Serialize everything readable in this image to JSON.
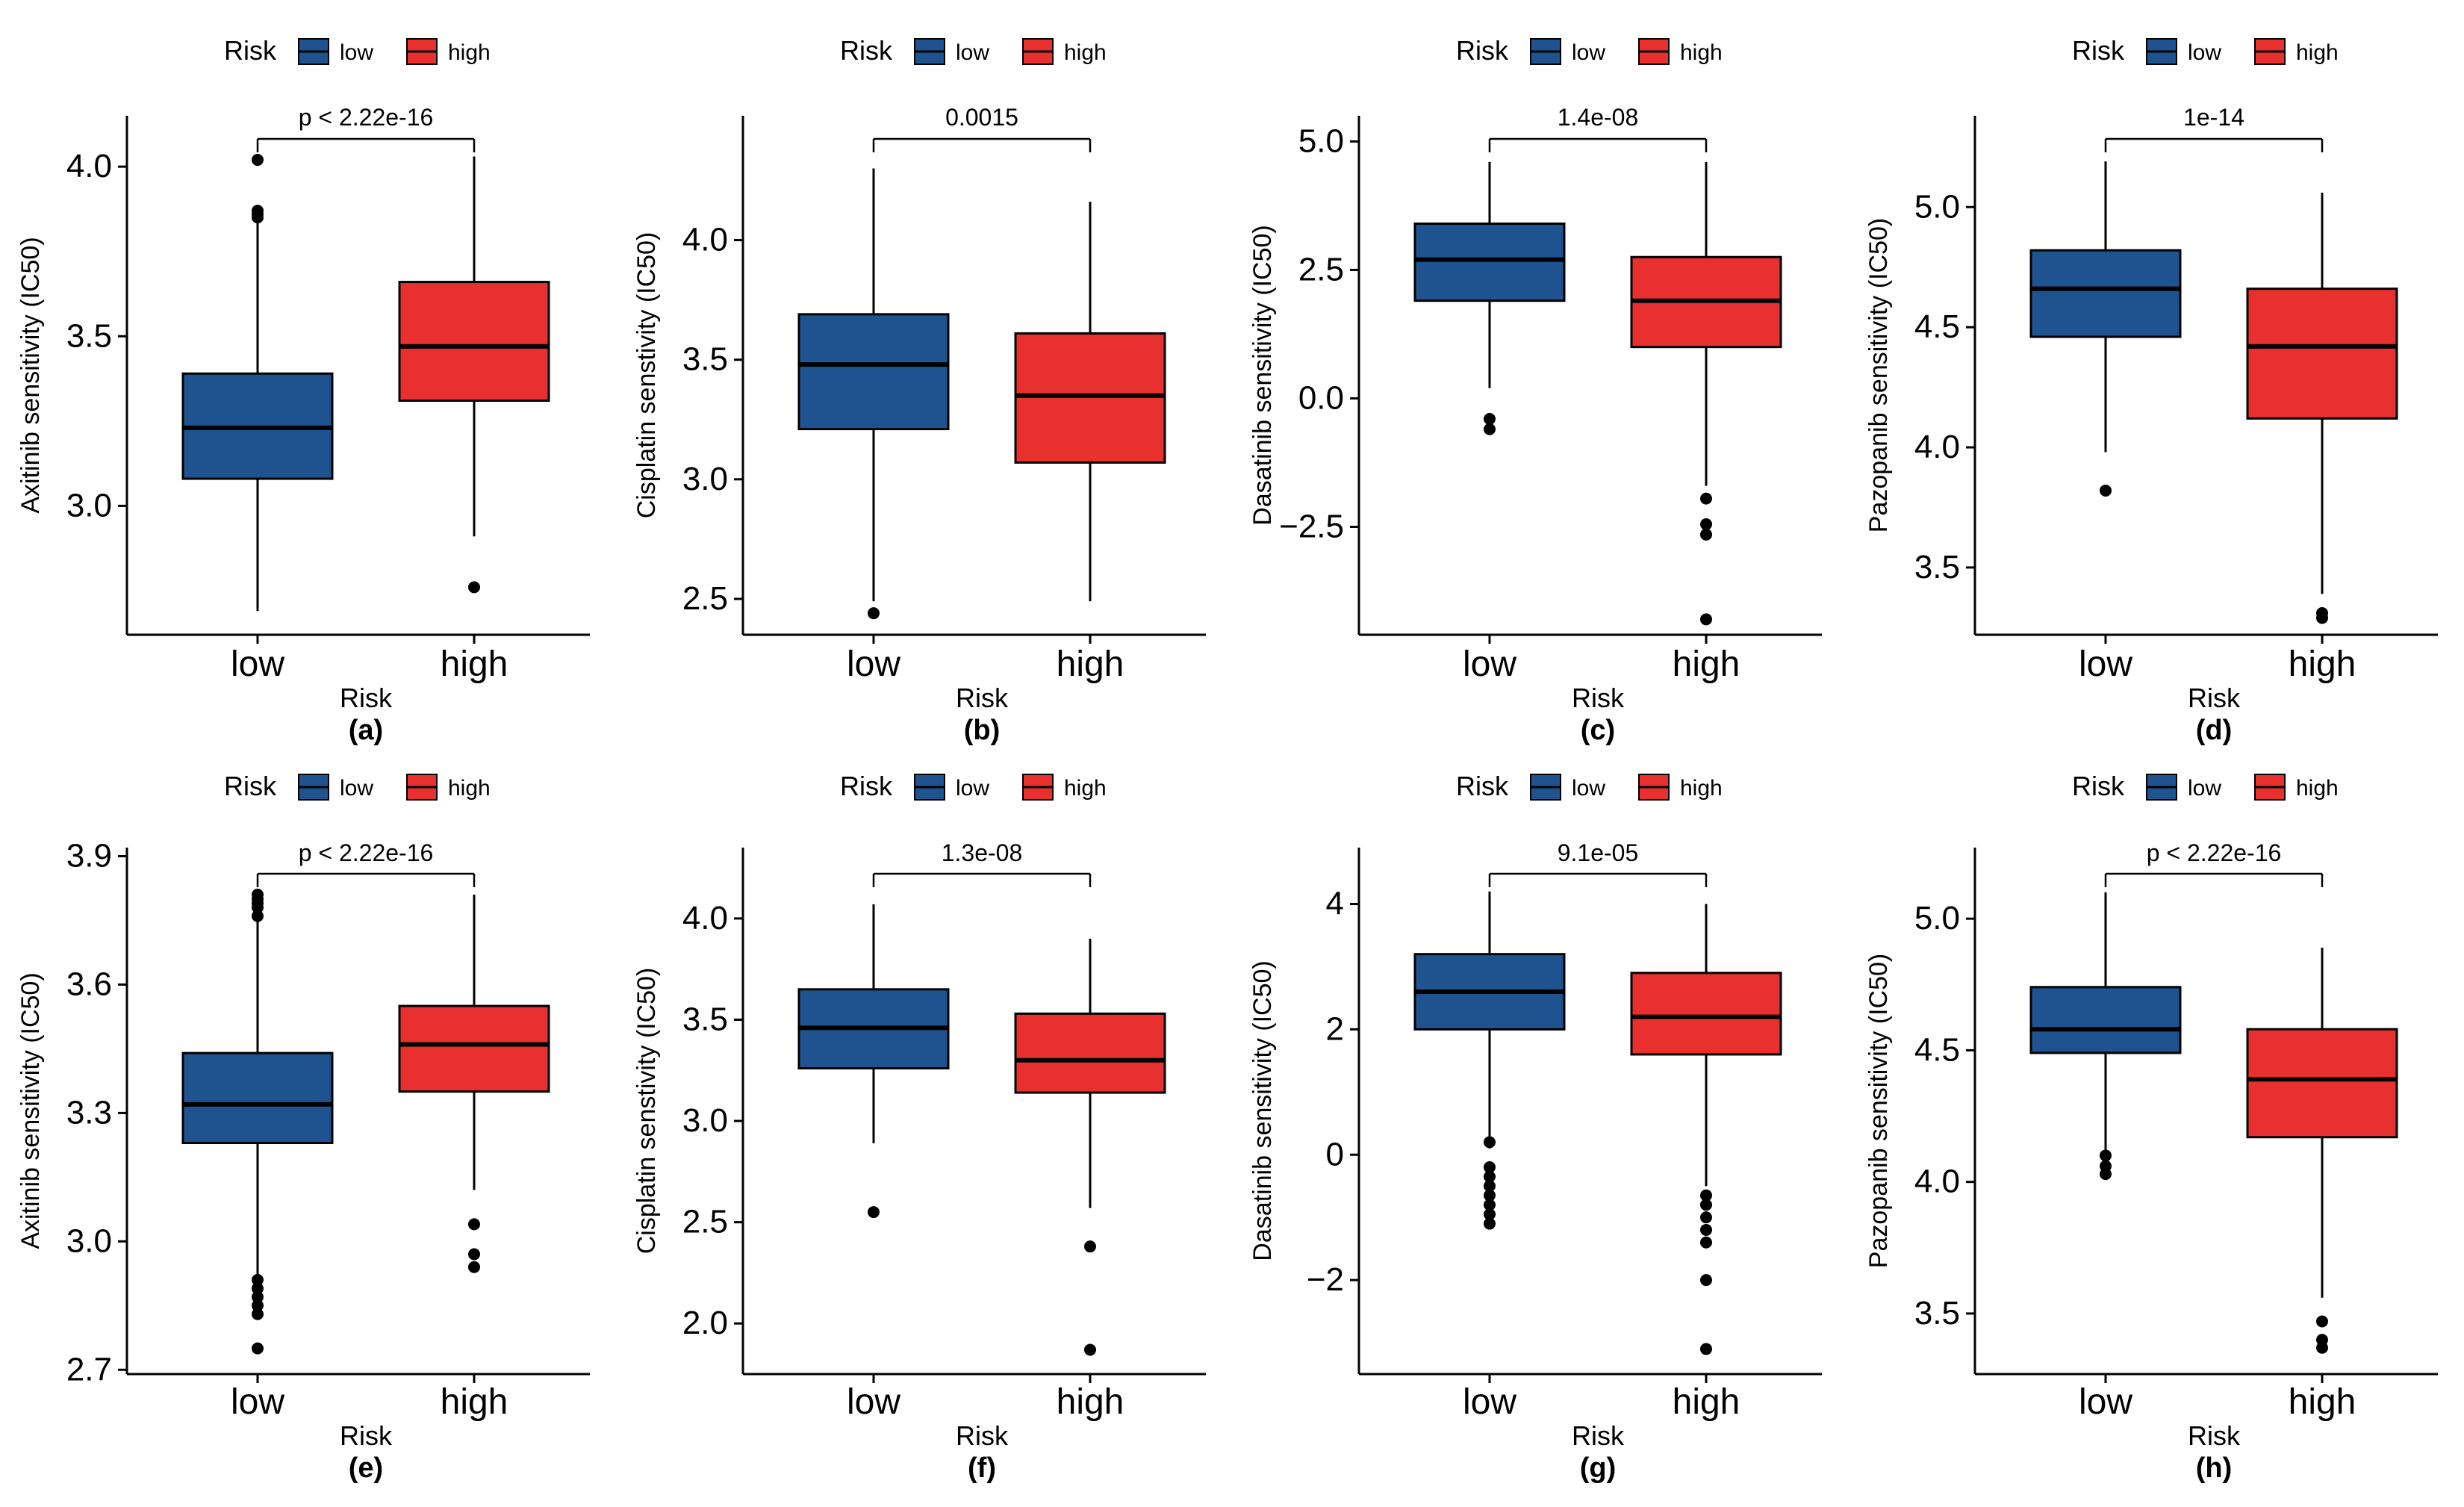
{
  "colors": {
    "low": "#1F5390",
    "high": "#E8312F",
    "axis": "#000000",
    "bracket": "#000000"
  },
  "legend": {
    "title": "Risk",
    "labels": [
      "low",
      "high"
    ]
  },
  "chart_data": [
    {
      "type": "boxplot",
      "panel": "(a)",
      "xlabel": "Risk",
      "ylabel": "Axitinib sensitivity (IC50)",
      "ylim": [
        2.62,
        4.15
      ],
      "yticks": [
        3.0,
        3.5,
        4.0
      ],
      "ytick_labels": [
        "3.0",
        "3.5",
        "4.0"
      ],
      "categories": [
        "low",
        "high"
      ],
      "pvalue": "p < 2.22e-16",
      "boxes": [
        {
          "group": "low",
          "whisker_low": 2.69,
          "q1": 3.08,
          "median": 3.23,
          "q3": 3.39,
          "whisker_high": 3.84,
          "outliers": [
            3.85,
            3.86,
            3.87,
            4.02
          ]
        },
        {
          "group": "high",
          "whisker_low": 2.91,
          "q1": 3.31,
          "median": 3.47,
          "q3": 3.66,
          "whisker_high": 4.03,
          "outliers": [
            2.76
          ]
        }
      ]
    },
    {
      "type": "boxplot",
      "panel": "(b)",
      "xlabel": "Risk",
      "ylabel": "Cisplatin senstivity (IC50)",
      "ylim": [
        2.35,
        4.52
      ],
      "yticks": [
        2.5,
        3.0,
        3.5,
        4.0
      ],
      "ytick_labels": [
        "2.5",
        "3.0",
        "3.5",
        "4.0"
      ],
      "categories": [
        "low",
        "high"
      ],
      "pvalue": "0.0015",
      "boxes": [
        {
          "group": "low",
          "whisker_low": 2.49,
          "q1": 3.21,
          "median": 3.48,
          "q3": 3.69,
          "whisker_high": 4.3,
          "outliers": [
            2.44
          ]
        },
        {
          "group": "high",
          "whisker_low": 2.49,
          "q1": 3.07,
          "median": 3.35,
          "q3": 3.61,
          "whisker_high": 4.16,
          "outliers": []
        }
      ]
    },
    {
      "type": "boxplot",
      "panel": "(c)",
      "xlabel": "Risk",
      "ylabel": "Dasatinib sensitivity (IC50)",
      "ylim": [
        -4.6,
        5.5
      ],
      "yticks": [
        -2.5,
        0.0,
        2.5,
        5.0
      ],
      "ytick_labels": [
        "−2.5",
        "0.0",
        "2.5",
        "5.0"
      ],
      "categories": [
        "low",
        "high"
      ],
      "pvalue": "1.4e-08",
      "boxes": [
        {
          "group": "low",
          "whisker_low": 0.2,
          "q1": 1.9,
          "median": 2.7,
          "q3": 3.4,
          "whisker_high": 4.6,
          "outliers": [
            -0.4,
            -0.6
          ]
        },
        {
          "group": "high",
          "whisker_low": -1.7,
          "q1": 1.0,
          "median": 1.9,
          "q3": 2.75,
          "whisker_high": 4.6,
          "outliers": [
            -1.95,
            -2.45,
            -2.65,
            -4.3
          ]
        }
      ]
    },
    {
      "type": "boxplot",
      "panel": "(d)",
      "xlabel": "Risk",
      "ylabel": "Pazopanib sensitivity (IC50)",
      "ylim": [
        3.22,
        5.38
      ],
      "yticks": [
        3.5,
        4.0,
        4.5,
        5.0
      ],
      "ytick_labels": [
        "3.5",
        "4.0",
        "4.5",
        "5.0"
      ],
      "categories": [
        "low",
        "high"
      ],
      "pvalue": "1e-14",
      "boxes": [
        {
          "group": "low",
          "whisker_low": 3.98,
          "q1": 4.46,
          "median": 4.66,
          "q3": 4.82,
          "whisker_high": 5.19,
          "outliers": [
            3.82
          ]
        },
        {
          "group": "high",
          "whisker_low": 3.39,
          "q1": 4.12,
          "median": 4.42,
          "q3": 4.66,
          "whisker_high": 5.06,
          "outliers": [
            3.29,
            3.31
          ]
        }
      ]
    },
    {
      "type": "boxplot",
      "panel": "(e)",
      "xlabel": "Risk",
      "ylabel": "Axitinib sensitivity (IC50)",
      "ylim": [
        2.69,
        3.92
      ],
      "yticks": [
        2.7,
        3.0,
        3.3,
        3.6,
        3.9
      ],
      "ytick_labels": [
        "2.7",
        "3.0",
        "3.3",
        "3.6",
        "3.9"
      ],
      "categories": [
        "low",
        "high"
      ],
      "pvalue": "p < 2.22e-16",
      "boxes": [
        {
          "group": "low",
          "whisker_low": 2.91,
          "q1": 3.23,
          "median": 3.32,
          "q3": 3.44,
          "whisker_high": 3.75,
          "outliers": [
            2.75,
            2.83,
            2.85,
            2.87,
            2.89,
            2.91,
            3.76,
            3.78,
            3.79,
            3.8,
            3.81
          ]
        },
        {
          "group": "high",
          "whisker_low": 3.12,
          "q1": 3.35,
          "median": 3.46,
          "q3": 3.55,
          "whisker_high": 3.81,
          "outliers": [
            2.94,
            2.97,
            3.04
          ]
        }
      ]
    },
    {
      "type": "boxplot",
      "panel": "(f)",
      "xlabel": "Risk",
      "ylabel": "Cisplatin senstivity (IC50)",
      "ylim": [
        1.75,
        4.35
      ],
      "yticks": [
        2.0,
        2.5,
        3.0,
        3.5,
        4.0
      ],
      "ytick_labels": [
        "2.0",
        "2.5",
        "3.0",
        "3.5",
        "4.0"
      ],
      "categories": [
        "low",
        "high"
      ],
      "pvalue": "1.3e-08",
      "boxes": [
        {
          "group": "low",
          "whisker_low": 2.89,
          "q1": 3.26,
          "median": 3.46,
          "q3": 3.65,
          "whisker_high": 4.07,
          "outliers": [
            2.55
          ]
        },
        {
          "group": "high",
          "whisker_low": 2.57,
          "q1": 3.14,
          "median": 3.3,
          "q3": 3.53,
          "whisker_high": 3.9,
          "outliers": [
            2.38,
            1.87
          ]
        }
      ]
    },
    {
      "type": "boxplot",
      "panel": "(g)",
      "xlabel": "Risk",
      "ylabel": "Dasatinib sensitivity (IC50)",
      "ylim": [
        -3.5,
        4.9
      ],
      "yticks": [
        -2,
        0,
        2,
        4
      ],
      "ytick_labels": [
        "−2",
        "0",
        "2",
        "4"
      ],
      "categories": [
        "low",
        "high"
      ],
      "pvalue": "9.1e-05",
      "boxes": [
        {
          "group": "low",
          "whisker_low": 0.1,
          "q1": 2.0,
          "median": 2.6,
          "q3": 3.2,
          "whisker_high": 4.2,
          "outliers": [
            0.2,
            -0.2,
            -0.35,
            -0.5,
            -0.65,
            -0.8,
            -0.95,
            -1.1
          ]
        },
        {
          "group": "high",
          "whisker_low": -0.5,
          "q1": 1.6,
          "median": 2.2,
          "q3": 2.9,
          "whisker_high": 4.0,
          "outliers": [
            -0.65,
            -0.8,
            -1.0,
            -1.2,
            -1.4,
            -2.0,
            -3.1
          ]
        }
      ]
    },
    {
      "type": "boxplot",
      "panel": "(h)",
      "xlabel": "Risk",
      "ylabel": "Pazopanib sensitivity (IC50)",
      "ylim": [
        3.27,
        5.27
      ],
      "yticks": [
        3.5,
        4.0,
        4.5,
        5.0
      ],
      "ytick_labels": [
        "3.5",
        "4.0",
        "4.5",
        "5.0"
      ],
      "categories": [
        "low",
        "high"
      ],
      "pvalue": "p < 2.22e-16",
      "boxes": [
        {
          "group": "low",
          "whisker_low": 4.12,
          "q1": 4.49,
          "median": 4.58,
          "q3": 4.74,
          "whisker_high": 5.1,
          "outliers": [
            4.03,
            4.06,
            4.1
          ]
        },
        {
          "group": "high",
          "whisker_low": 3.56,
          "q1": 4.17,
          "median": 4.39,
          "q3": 4.58,
          "whisker_high": 4.89,
          "outliers": [
            3.37,
            3.4,
            3.47
          ]
        }
      ]
    }
  ]
}
